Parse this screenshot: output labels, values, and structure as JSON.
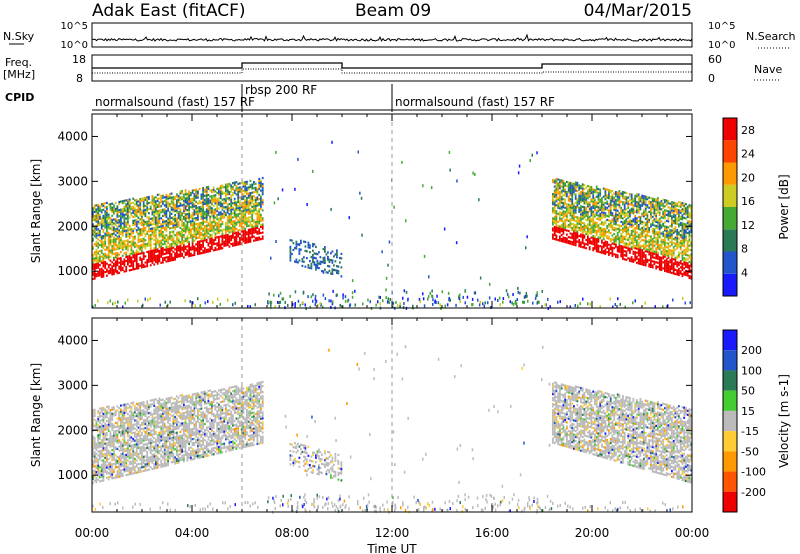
{
  "header": {
    "station": "Adak East (fitACF)",
    "beam": "Beam 09",
    "date": "04/Mar/2015"
  },
  "aux_labels": {
    "nsky": "N.Sky",
    "nsearch": "N.Search",
    "freq": "Freq.",
    "freq_unit": "[MHz]",
    "nave": "Nave",
    "cpid": "CPID",
    "nsky_ticks": [
      "10^5",
      "10^0"
    ],
    "nsearch_ticks": [
      "10^5",
      "10^0"
    ],
    "freq_ticks": [
      "18",
      "8"
    ],
    "nave_ticks": [
      "60",
      "0"
    ]
  },
  "cpid_segments": [
    {
      "label": "normalsound (fast) 157 RF",
      "start_hour": 0
    },
    {
      "label": "rbsp 200 RF",
      "start_hour": 6
    },
    {
      "label": "normalsound (fast) 157 RF",
      "start_hour": 12
    }
  ],
  "chart_data": [
    {
      "type": "heatmap",
      "name": "power-panel",
      "xlabel": "Time UT",
      "ylabel": "Slant Range [km]",
      "x_ticks": [
        "00:00",
        "04:00",
        "08:00",
        "12:00",
        "16:00",
        "20:00",
        "00:00"
      ],
      "x_range_hours": [
        0,
        24
      ],
      "y_ticks": [
        1000,
        2000,
        3000,
        4000
      ],
      "ylim": [
        180,
        4500
      ],
      "colorbar": {
        "label": "Power [dB]",
        "ticks": [
          4,
          8,
          12,
          16,
          20,
          24,
          28
        ],
        "range": [
          0,
          30
        ],
        "colors": [
          "#1a1aff",
          "#2255cc",
          "#2a7a55",
          "#44aa33",
          "#cccc22",
          "#ff9900",
          "#ff4400",
          "#ee0000"
        ]
      }
    },
    {
      "type": "heatmap",
      "name": "velocity-panel",
      "xlabel": "Time UT",
      "ylabel": "Slant Range [km]",
      "x_ticks": [
        "00:00",
        "04:00",
        "08:00",
        "12:00",
        "16:00",
        "20:00",
        "00:00"
      ],
      "x_range_hours": [
        0,
        24
      ],
      "y_ticks": [
        1000,
        2000,
        3000,
        4000
      ],
      "ylim": [
        180,
        4500
      ],
      "colorbar": {
        "label": "Velocity [m s-1]",
        "ticks": [
          "200",
          "100",
          "50",
          "15",
          "-15",
          "-50",
          "-100",
          "-200"
        ],
        "colors": [
          "#1a1aff",
          "#2255cc",
          "#2a7a55",
          "#44cc33",
          "#bbbbbb",
          "#ffcc33",
          "#ff9900",
          "#ff5500",
          "#ee0000"
        ]
      }
    }
  ]
}
